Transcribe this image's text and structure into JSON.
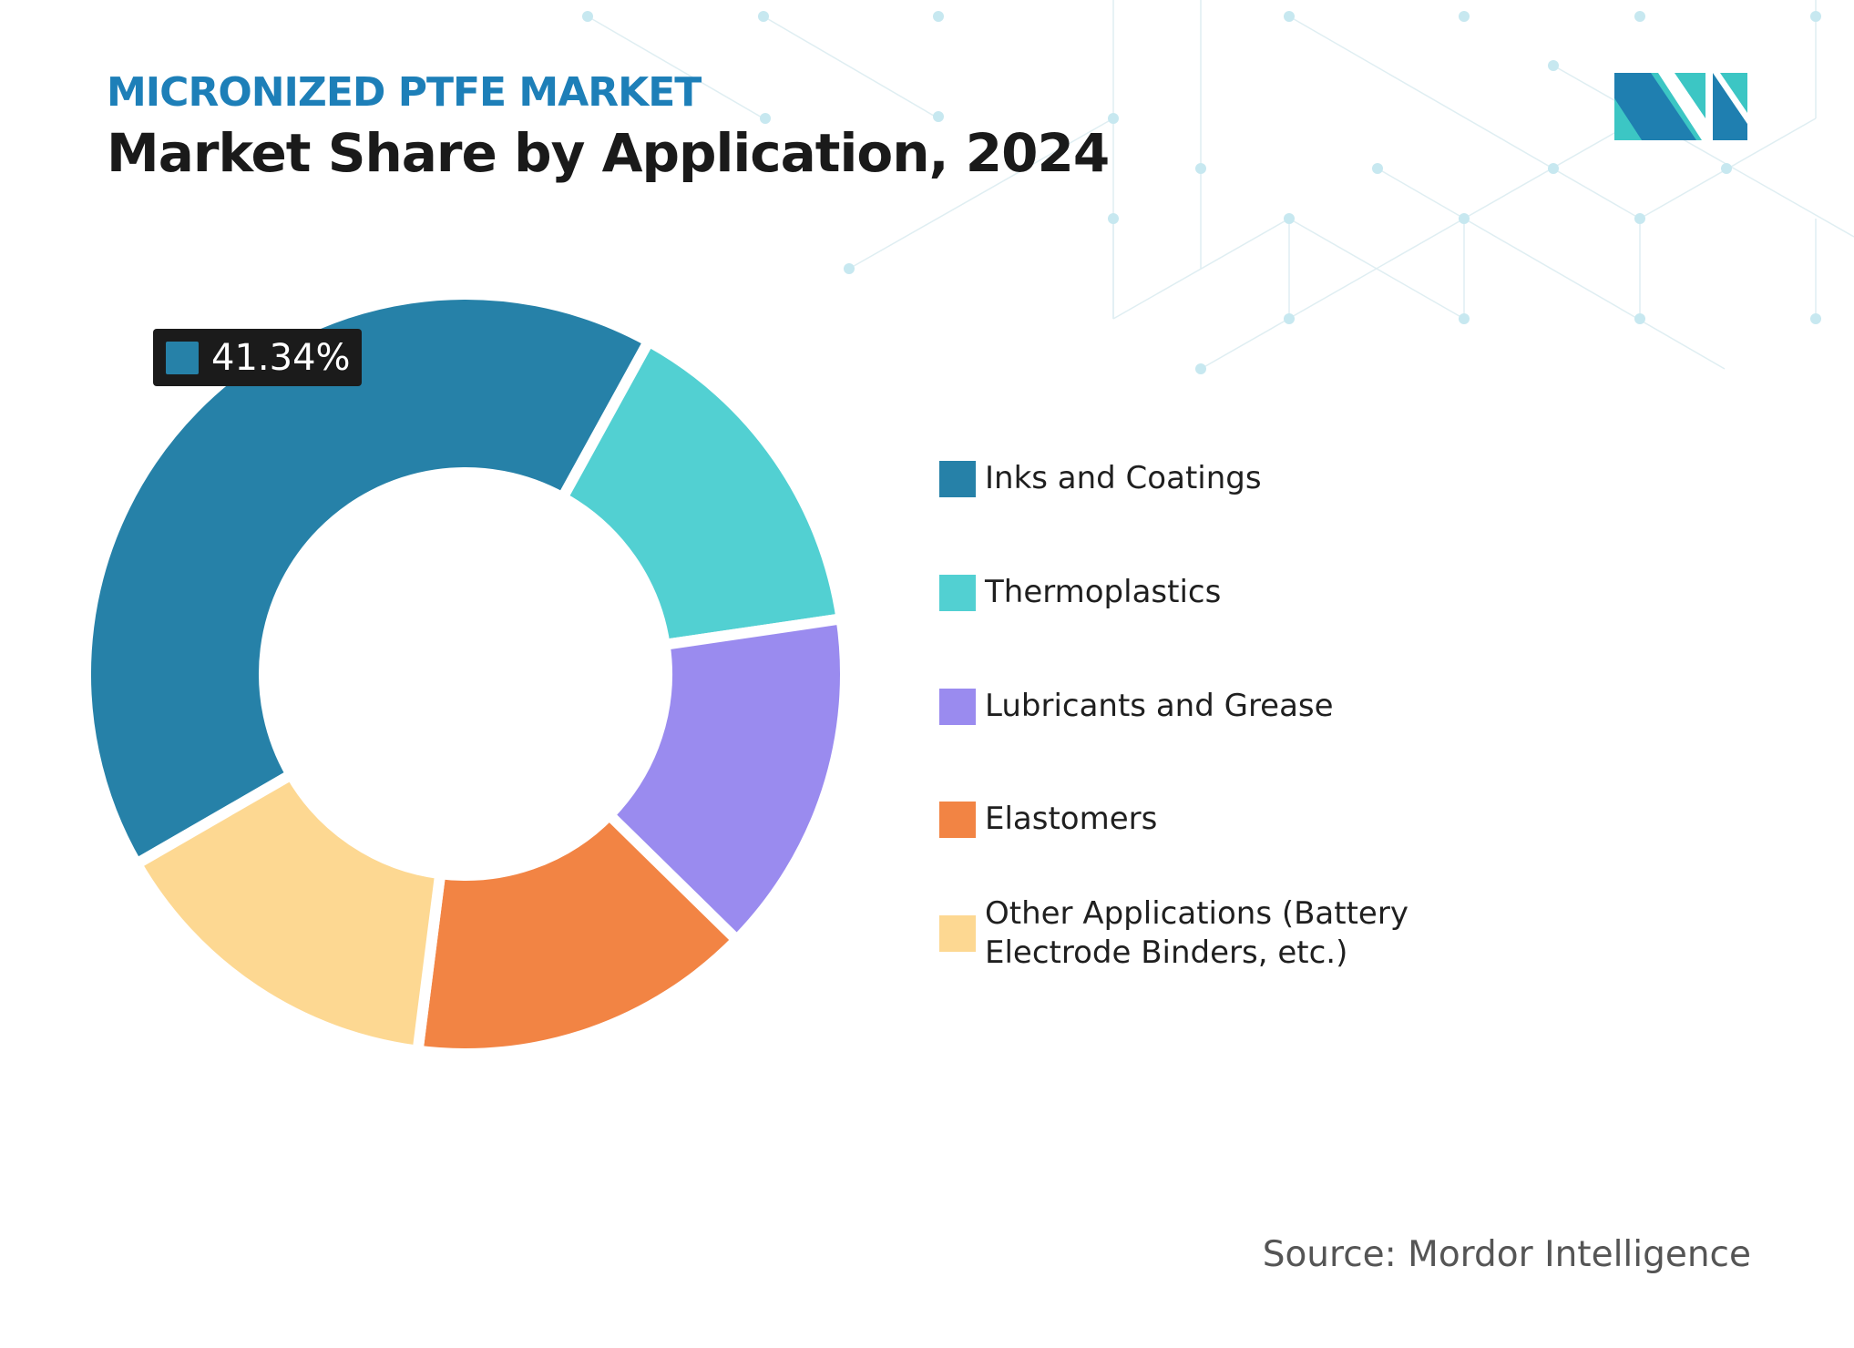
{
  "header": {
    "kicker": "MICRONIZED PTFE MARKET",
    "title": "Market Share by Application, 2024"
  },
  "logo": {
    "colors": [
      "#1f7fb0",
      "#3cc6c4"
    ]
  },
  "callout": {
    "label": "41.34%",
    "color": "#2681a8"
  },
  "chart_data": {
    "type": "pie",
    "donut": true,
    "title": "Market Share by Application, 2024",
    "categories": [
      "Inks and Coatings",
      "Thermoplastics",
      "Lubricants and Grease",
      "Elastomers",
      "Other Applications (Battery Electrode Binders, etc.)"
    ],
    "values": [
      41.34,
      14.67,
      14.67,
      14.66,
      14.66
    ],
    "colors": [
      "#2681a8",
      "#52d0d2",
      "#9a8bef",
      "#f28444",
      "#fdd892"
    ],
    "data_labels": [
      "41.34%"
    ],
    "legend_position": "right"
  },
  "source": "Source: Mordor Intelligence"
}
